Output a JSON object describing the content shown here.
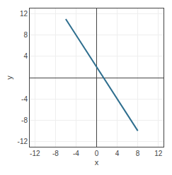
{
  "chart_data": {
    "type": "line",
    "x": [
      -6,
      8
    ],
    "values": [
      11,
      -10
    ],
    "color": "#2e6e8e",
    "xlim": [
      -13,
      13
    ],
    "ylim": [
      -13,
      13
    ],
    "xticks": [
      -12,
      -8,
      -4,
      0,
      4,
      8,
      12
    ],
    "yticks": [
      -12,
      -8,
      -4,
      4,
      8,
      12
    ],
    "xlabel": "x",
    "ylabel": "y",
    "grid": true
  }
}
